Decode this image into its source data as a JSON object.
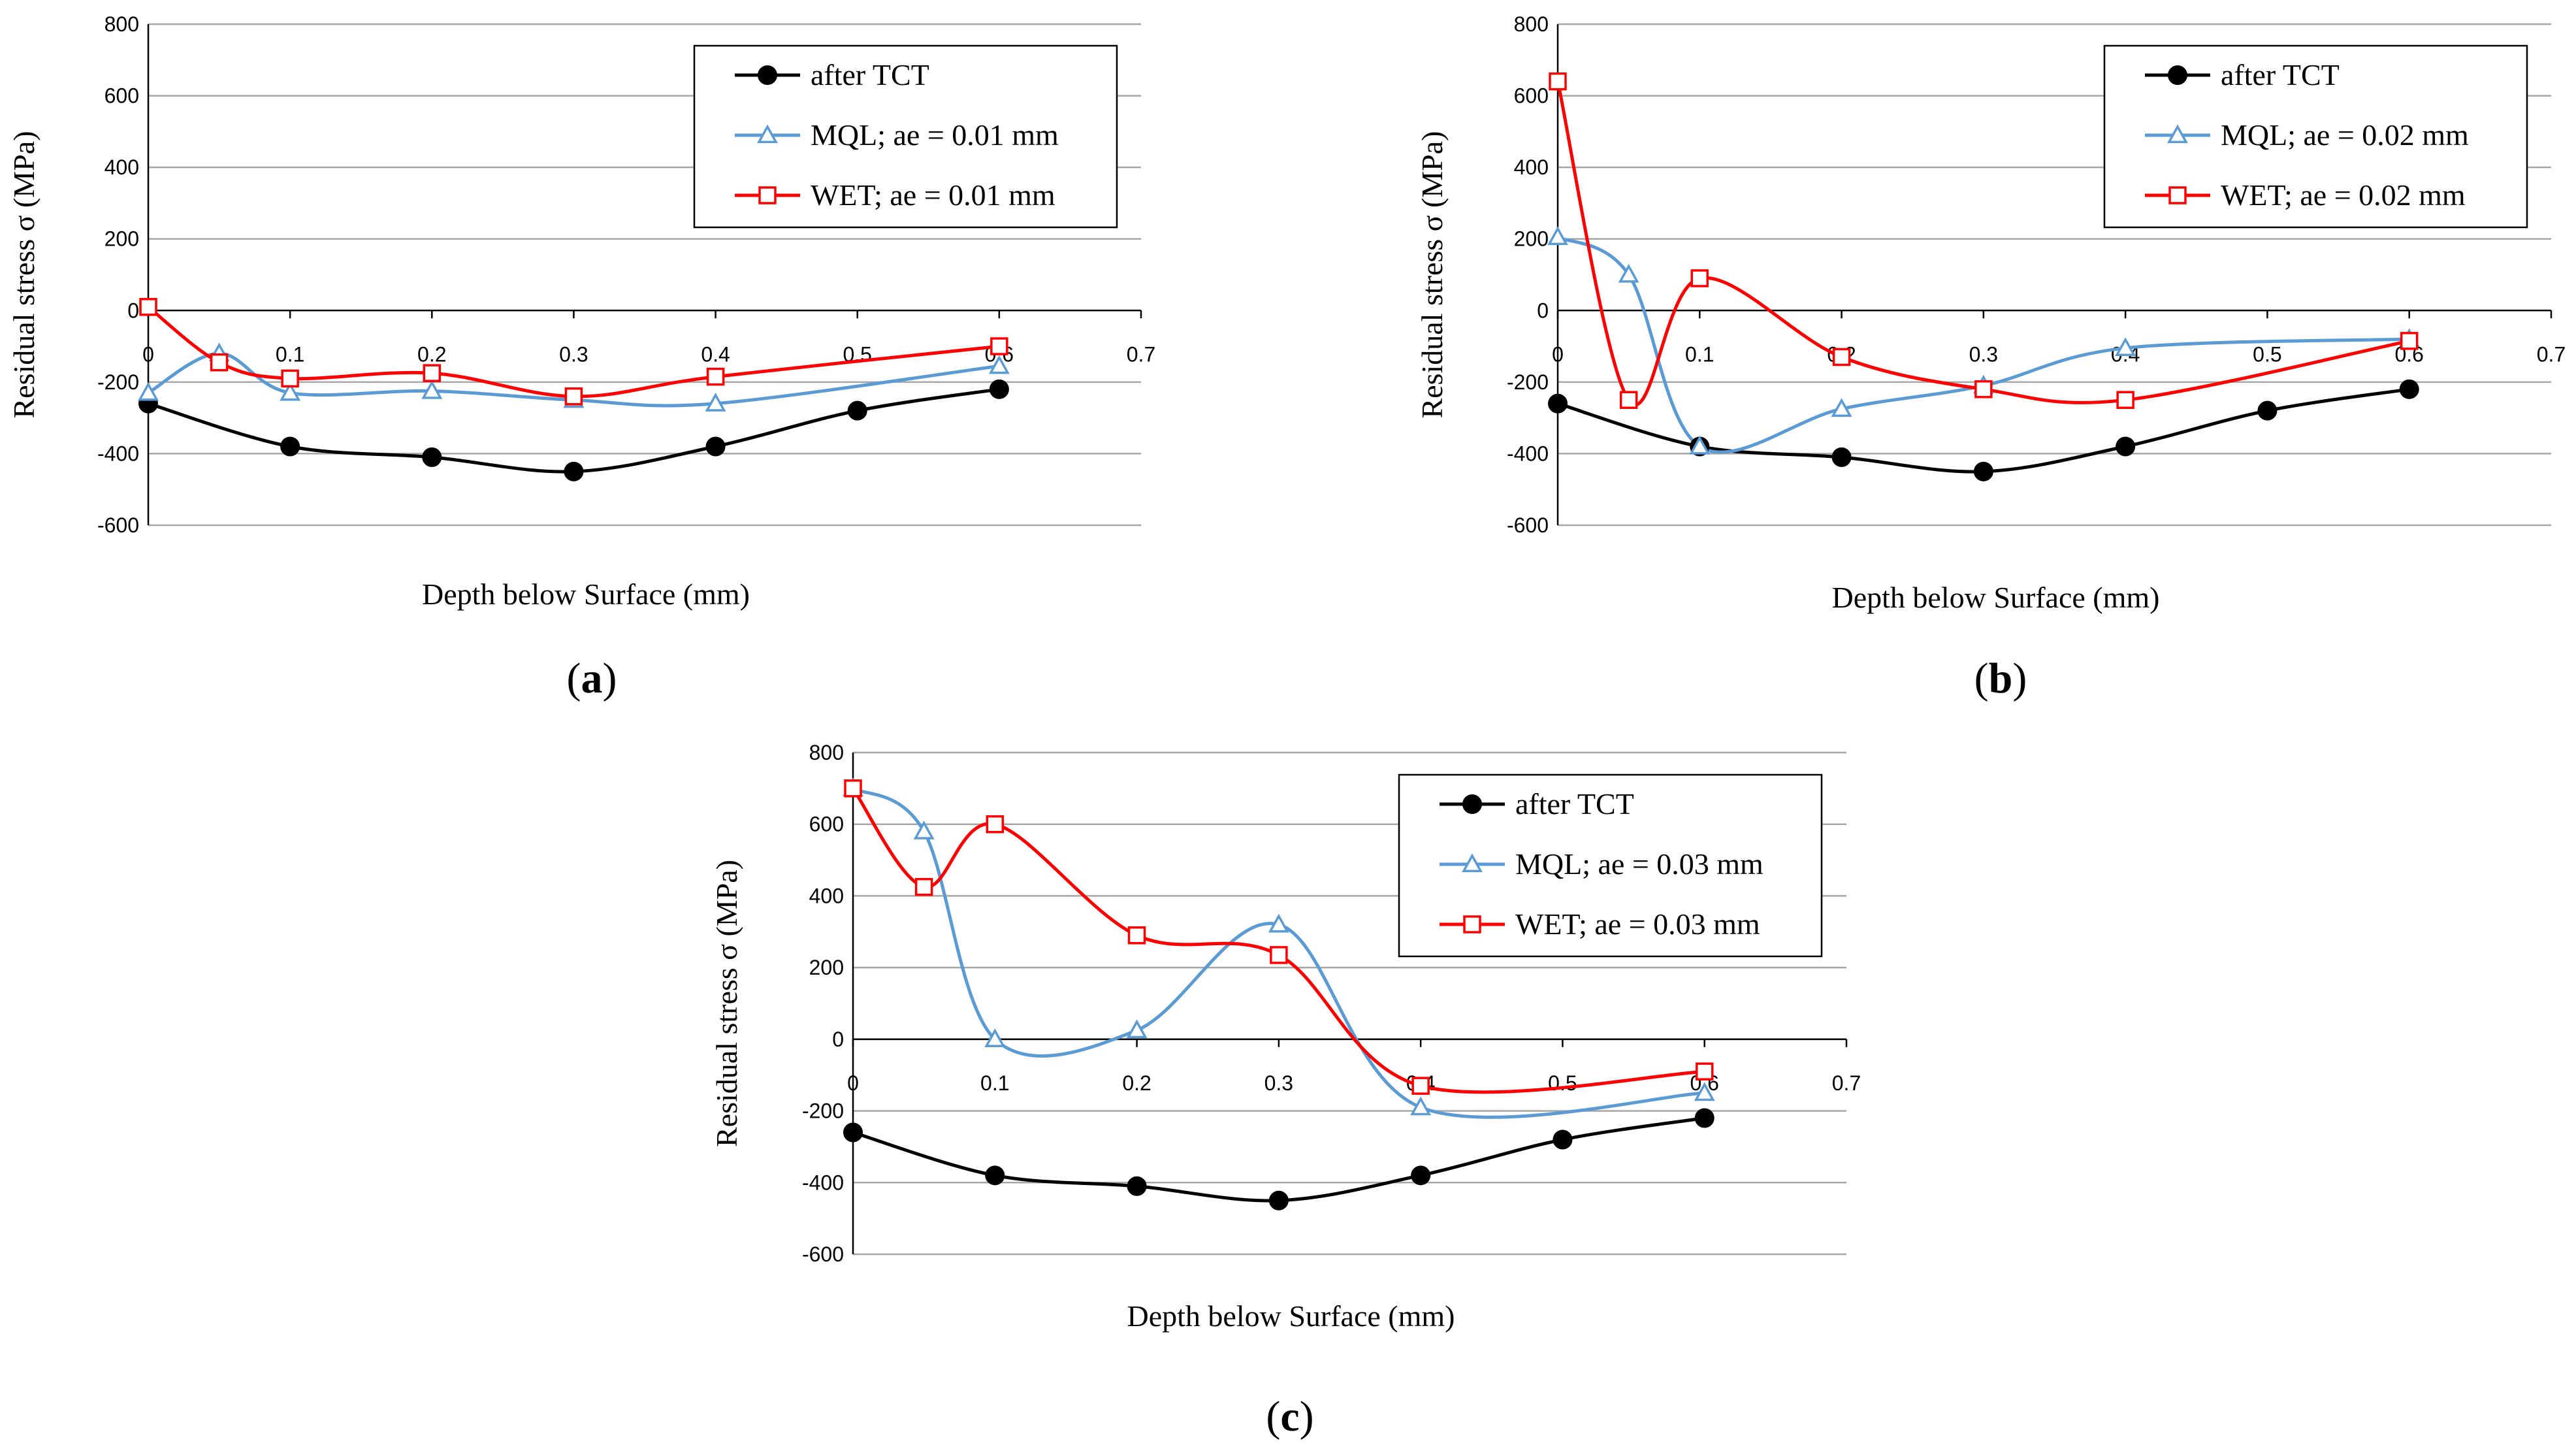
{
  "chart_data": [
    {
      "type": "line",
      "panel_label": "a",
      "xlabel": "Depth below Surface (mm)",
      "ylabel": "Residual stress σ (MPa)",
      "xlim": [
        0,
        0.7
      ],
      "ylim": [
        -600,
        800
      ],
      "xticks": [
        "0",
        "0.1",
        "0.2",
        "0.3",
        "0.4",
        "0.5",
        "0.6",
        "0.7"
      ],
      "yticks": [
        "800",
        "600",
        "400",
        "200",
        "0",
        "-200",
        "-400",
        "-600"
      ],
      "grid": "horizontal",
      "legend_position": "top-right",
      "series": [
        {
          "name": "after TCT",
          "color": "#000000",
          "marker": "filled-circle",
          "points": [
            [
              0,
              -260
            ],
            [
              0.1,
              -380
            ],
            [
              0.2,
              -410
            ],
            [
              0.3,
              -450
            ],
            [
              0.4,
              -380
            ],
            [
              0.5,
              -280
            ],
            [
              0.6,
              -220
            ]
          ]
        },
        {
          "name": "MQL; ae = 0.01 mm",
          "color": "#5B9BD5",
          "marker": "open-triangle",
          "points": [
            [
              0,
              -230
            ],
            [
              0.05,
              -120
            ],
            [
              0.1,
              -230
            ],
            [
              0.2,
              -225
            ],
            [
              0.3,
              -250
            ],
            [
              0.4,
              -260
            ],
            [
              0.6,
              -155
            ]
          ]
        },
        {
          "name": "WET; ae = 0.01 mm",
          "color": "#FF0000",
          "marker": "open-square",
          "points": [
            [
              0,
              10
            ],
            [
              0.05,
              -145
            ],
            [
              0.1,
              -190
            ],
            [
              0.2,
              -175
            ],
            [
              0.3,
              -240
            ],
            [
              0.4,
              -185
            ],
            [
              0.6,
              -100
            ]
          ]
        }
      ]
    },
    {
      "type": "line",
      "panel_label": "b",
      "xlabel": "Depth below Surface (mm)",
      "ylabel": "Residual stress σ (MPa)",
      "xlim": [
        0,
        0.7
      ],
      "ylim": [
        -600,
        800
      ],
      "xticks": [
        "0",
        "0.1",
        "0.2",
        "0.3",
        "0.4",
        "0.5",
        "0.6",
        "0.7"
      ],
      "yticks": [
        "800",
        "600",
        "400",
        "200",
        "0",
        "-200",
        "-400",
        "-600"
      ],
      "grid": "horizontal",
      "legend_position": "top-right",
      "series": [
        {
          "name": "after TCT",
          "color": "#000000",
          "marker": "filled-circle",
          "points": [
            [
              0,
              -260
            ],
            [
              0.1,
              -380
            ],
            [
              0.2,
              -410
            ],
            [
              0.3,
              -450
            ],
            [
              0.4,
              -380
            ],
            [
              0.5,
              -280
            ],
            [
              0.6,
              -220
            ]
          ]
        },
        {
          "name": "MQL; ae = 0.02 mm",
          "color": "#5B9BD5",
          "marker": "open-triangle",
          "points": [
            [
              0,
              205
            ],
            [
              0.05,
              100
            ],
            [
              0.1,
              -380
            ],
            [
              0.2,
              -275
            ],
            [
              0.3,
              -210
            ],
            [
              0.4,
              -105
            ],
            [
              0.6,
              -80
            ]
          ]
        },
        {
          "name": "WET; ae = 0.02 mm",
          "color": "#FF0000",
          "marker": "open-square",
          "points": [
            [
              0,
              640
            ],
            [
              0.05,
              -250
            ],
            [
              0.1,
              90
            ],
            [
              0.2,
              -130
            ],
            [
              0.3,
              -220
            ],
            [
              0.4,
              -250
            ],
            [
              0.6,
              -85
            ]
          ]
        }
      ]
    },
    {
      "type": "line",
      "panel_label": "c",
      "xlabel": "Depth below Surface (mm)",
      "ylabel": "Residual stress σ (MPa)",
      "xlim": [
        0,
        0.7
      ],
      "ylim": [
        -600,
        800
      ],
      "xticks": [
        "0",
        "0.1",
        "0.2",
        "0.3",
        "0.4",
        "0.5",
        "0.6",
        "0.7"
      ],
      "yticks": [
        "800",
        "600",
        "400",
        "200",
        "0",
        "-200",
        "-400",
        "-600"
      ],
      "grid": "horizontal",
      "legend_position": "top-right",
      "series": [
        {
          "name": "after TCT",
          "color": "#000000",
          "marker": "filled-circle",
          "points": [
            [
              0,
              -260
            ],
            [
              0.1,
              -380
            ],
            [
              0.2,
              -410
            ],
            [
              0.3,
              -450
            ],
            [
              0.4,
              -380
            ],
            [
              0.5,
              -280
            ],
            [
              0.6,
              -220
            ]
          ]
        },
        {
          "name": "MQL; ae = 0.03 mm",
          "color": "#5B9BD5",
          "marker": "open-triangle",
          "points": [
            [
              0,
              700
            ],
            [
              0.05,
              580
            ],
            [
              0.1,
              0
            ],
            [
              0.2,
              25
            ],
            [
              0.3,
              320
            ],
            [
              0.4,
              -190
            ],
            [
              0.6,
              -150
            ]
          ]
        },
        {
          "name": "WET; ae = 0.03 mm",
          "color": "#FF0000",
          "marker": "open-square",
          "points": [
            [
              0,
              700
            ],
            [
              0.05,
              425
            ],
            [
              0.1,
              600
            ],
            [
              0.2,
              290
            ],
            [
              0.3,
              235
            ],
            [
              0.4,
              -130
            ],
            [
              0.6,
              -90
            ]
          ]
        }
      ]
    }
  ]
}
